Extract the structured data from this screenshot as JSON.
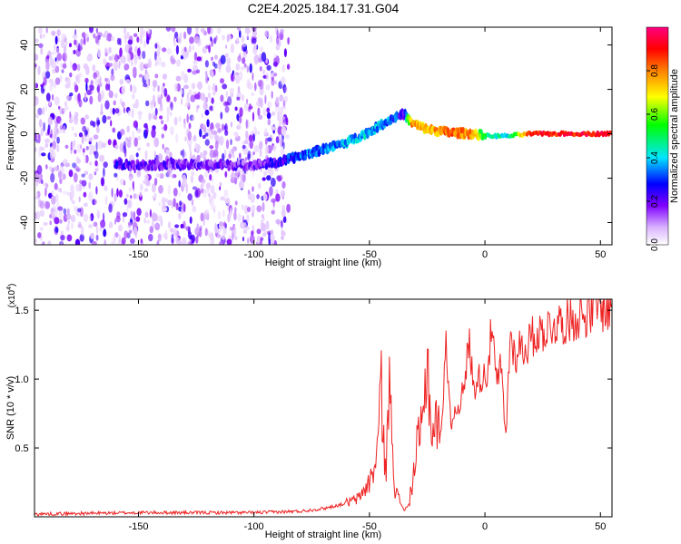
{
  "page_title": "C2E4.2025.184.17.31.G04",
  "colorbar": {
    "label": "Normalized spectral amplitude",
    "ticks": [
      {
        "value": 0.0,
        "label": "0.0"
      },
      {
        "value": 0.2,
        "label": "0.2"
      },
      {
        "value": 0.4,
        "label": "0.4"
      },
      {
        "value": 0.6,
        "label": "0.6"
      },
      {
        "value": 0.8,
        "label": "0.8"
      }
    ],
    "range": [
      0,
      1
    ],
    "colormap": [
      "#ffffff",
      "#d9b3ff",
      "#8000ff",
      "#0000ff",
      "#00e5ff",
      "#00ff00",
      "#ffff00",
      "#ff8000",
      "#ff0000",
      "#ff0080"
    ]
  },
  "chart_data": [
    {
      "type": "heatmap",
      "title": "C2E4.2025.184.17.31.G04",
      "xlabel": "Height of straight line (km)",
      "ylabel": "Frequency (Hz)",
      "xlim": [
        -195,
        55
      ],
      "ylim": [
        -50,
        48
      ],
      "x_ticks": [
        {
          "value": -150,
          "label": "-150"
        },
        {
          "value": -100,
          "label": "-100"
        },
        {
          "value": -50,
          "label": "-50"
        },
        {
          "value": 0,
          "label": "0"
        },
        {
          "value": 50,
          "label": "50"
        }
      ],
      "y_ticks": [
        {
          "value": -40,
          "label": "-40"
        },
        {
          "value": -20,
          "label": "-20"
        },
        {
          "value": 0,
          "label": "0"
        },
        {
          "value": 20,
          "label": "20"
        },
        {
          "value": 40,
          "label": "40"
        }
      ],
      "noise_region_x": [
        -195,
        -85
      ],
      "ridge": [
        {
          "x": -160,
          "y": -14,
          "amp": 0.3
        },
        {
          "x": -140,
          "y": -14,
          "amp": 0.25
        },
        {
          "x": -120,
          "y": -14,
          "amp": 0.25
        },
        {
          "x": -100,
          "y": -14,
          "amp": 0.25
        },
        {
          "x": -90,
          "y": -13,
          "amp": 0.3
        },
        {
          "x": -80,
          "y": -10,
          "amp": 0.4
        },
        {
          "x": -70,
          "y": -7,
          "amp": 0.4
        },
        {
          "x": -60,
          "y": -4,
          "amp": 0.45
        },
        {
          "x": -50,
          "y": 1,
          "amp": 0.45
        },
        {
          "x": -40,
          "y": 7,
          "amp": 0.4
        },
        {
          "x": -35,
          "y": 9,
          "amp": 0.3
        },
        {
          "x": -32,
          "y": 5,
          "amp": 0.85
        },
        {
          "x": -25,
          "y": 2,
          "amp": 0.8
        },
        {
          "x": -15,
          "y": 0.5,
          "amp": 0.9
        },
        {
          "x": -5,
          "y": 0,
          "amp": 0.85
        },
        {
          "x": 0,
          "y": -1,
          "amp": 0.55
        },
        {
          "x": 10,
          "y": -1,
          "amp": 0.5
        },
        {
          "x": 20,
          "y": 0,
          "amp": 0.95
        },
        {
          "x": 40,
          "y": 0,
          "amp": 0.98
        },
        {
          "x": 55,
          "y": 0,
          "amp": 0.98
        }
      ]
    },
    {
      "type": "line",
      "xlabel": "Height of straight line (km)",
      "ylabel": "SNR (10 * v/v)",
      "y_multiplier_label": "(x10",
      "y_multiplier_exp": "4",
      "xlim": [
        -195,
        55
      ],
      "ylim": [
        0,
        1.58
      ],
      "x_ticks": [
        {
          "value": -150,
          "label": "-150"
        },
        {
          "value": -100,
          "label": "-100"
        },
        {
          "value": -50,
          "label": "-50"
        },
        {
          "value": 0,
          "label": "0"
        },
        {
          "value": 50,
          "label": "50"
        }
      ],
      "y_ticks": [
        {
          "value": 0.5,
          "label": "0.5"
        },
        {
          "value": 1.0,
          "label": "1.0"
        },
        {
          "value": 1.5,
          "label": "1.5"
        }
      ],
      "series": [
        {
          "color": "#ee2222",
          "x": [
            -195,
            -150,
            -100,
            -80,
            -70,
            -62,
            -55,
            -50,
            -47,
            -45,
            -43,
            -41,
            -39,
            -37,
            -35,
            -33,
            -31,
            -29,
            -27,
            -25,
            -23,
            -21,
            -19,
            -17,
            -15,
            -13,
            -11,
            -9,
            -7,
            -5,
            -3,
            -1,
            1,
            3,
            5,
            7,
            9,
            11,
            13,
            15,
            17,
            20,
            25,
            30,
            35,
            40,
            45,
            50,
            55
          ],
          "values": [
            0.02,
            0.03,
            0.03,
            0.04,
            0.06,
            0.09,
            0.13,
            0.25,
            0.4,
            0.95,
            0.3,
            1.02,
            0.2,
            0.12,
            0.05,
            0.08,
            0.3,
            0.55,
            0.62,
            1.2,
            0.58,
            0.7,
            0.55,
            1.32,
            0.7,
            0.75,
            0.85,
            0.9,
            1.3,
            0.95,
            1.0,
            1.02,
            1.05,
            1.38,
            0.95,
            1.1,
            0.55,
            1.35,
            1.15,
            1.25,
            1.2,
            1.3,
            1.35,
            1.4,
            1.42,
            1.45,
            1.48,
            1.52,
            1.5
          ]
        }
      ]
    }
  ]
}
